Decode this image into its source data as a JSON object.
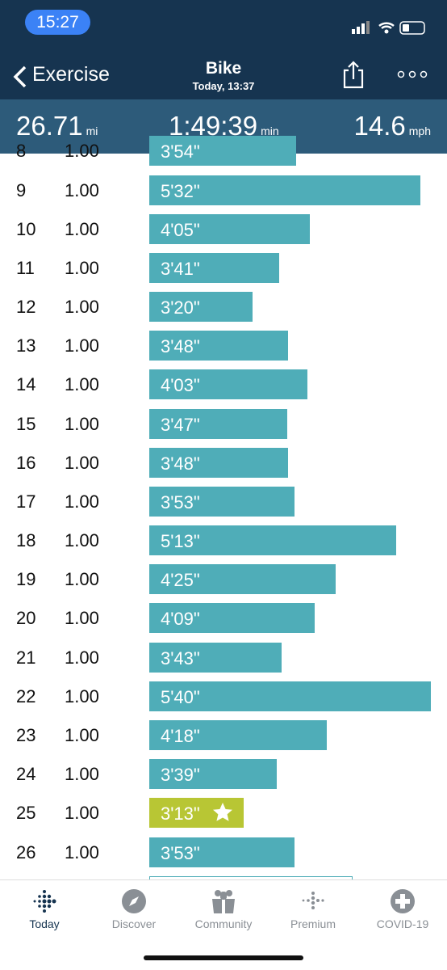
{
  "status": {
    "time": "15:27"
  },
  "nav": {
    "back": "Exercise",
    "title": "Bike",
    "subtitle": "Today, 13:37"
  },
  "stats": [
    {
      "value": "26.71",
      "unit": "mi"
    },
    {
      "value": "1:49:39",
      "unit": "min"
    },
    {
      "value": "14.6",
      "unit": "mph"
    }
  ],
  "splits": {
    "rows": [
      [
        "8",
        "1.00",
        "3'54\""
      ],
      [
        "9",
        "1.00",
        "5'32\""
      ],
      [
        "10",
        "1.00",
        "4'05\""
      ],
      [
        "11",
        "1.00",
        "3'41\""
      ],
      [
        "12",
        "1.00",
        "3'20\""
      ],
      [
        "13",
        "1.00",
        "3'48\""
      ],
      [
        "14",
        "1.00",
        "4'03\""
      ],
      [
        "15",
        "1.00",
        "3'47\""
      ],
      [
        "16",
        "1.00",
        "3'48\""
      ],
      [
        "17",
        "1.00",
        "3'53\""
      ],
      [
        "18",
        "1.00",
        "5'13\""
      ],
      [
        "19",
        "1.00",
        "4'25\""
      ],
      [
        "20",
        "1.00",
        "4'09\""
      ],
      [
        "21",
        "1.00",
        "3'43\""
      ],
      [
        "22",
        "1.00",
        "5'40\""
      ],
      [
        "23",
        "1.00",
        "4'18\""
      ],
      [
        "24",
        "1.00",
        "3'39\""
      ],
      [
        "25",
        "1.00",
        "3'13\""
      ],
      [
        "26",
        "1.00",
        "3'53\""
      ]
    ]
  },
  "tabs": [
    "Today",
    "Discover",
    "Community",
    "Premium",
    "COVID-19"
  ]
}
